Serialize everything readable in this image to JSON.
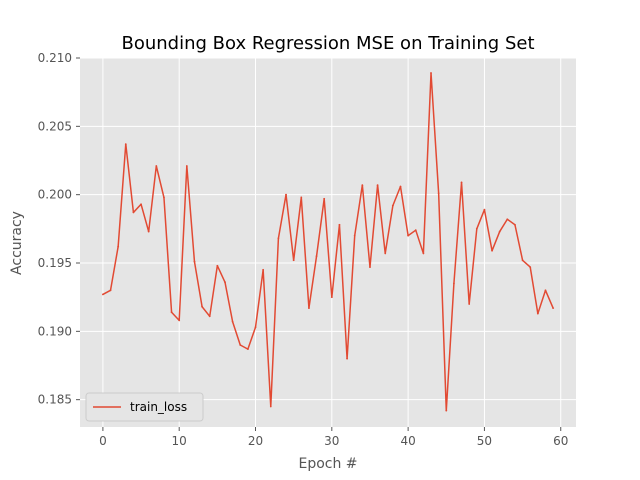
{
  "chart_data": {
    "type": "line",
    "title": "Bounding Box Regression MSE on Training Set",
    "xlabel": "Epoch #",
    "ylabel": "Accuracy",
    "xlim": [
      -3,
      62
    ],
    "ylim": [
      0.183,
      0.21
    ],
    "xticks": [
      0,
      10,
      20,
      30,
      40,
      50,
      60
    ],
    "xtick_labels": [
      "0",
      "10",
      "20",
      "30",
      "40",
      "50",
      "60"
    ],
    "yticks": [
      0.185,
      0.19,
      0.195,
      0.2,
      0.205,
      0.21
    ],
    "ytick_labels": [
      "0.185",
      "0.190",
      "0.195",
      "0.200",
      "0.205",
      "0.210"
    ],
    "grid": true,
    "legend_position": "lower-left",
    "series": [
      {
        "name": "train_loss",
        "color": "#e24a33",
        "x": [
          0,
          1,
          2,
          3,
          4,
          5,
          6,
          7,
          8,
          9,
          10,
          11,
          12,
          13,
          14,
          15,
          16,
          17,
          18,
          19,
          20,
          21,
          22,
          23,
          24,
          25,
          26,
          27,
          28,
          29,
          30,
          31,
          32,
          33,
          34,
          35,
          36,
          37,
          38,
          39,
          40,
          41,
          42,
          43,
          44,
          45,
          46,
          47,
          48,
          49,
          50,
          51,
          52,
          53,
          54,
          55,
          56,
          57,
          58,
          59
        ],
        "values": [
          0.1927,
          0.193,
          0.1962,
          0.2037,
          0.1987,
          0.1993,
          0.1973,
          0.2021,
          0.1998,
          0.1914,
          0.1908,
          0.2021,
          0.1951,
          0.1918,
          0.1911,
          0.1948,
          0.1936,
          0.1907,
          0.189,
          0.1887,
          0.1903,
          0.1945,
          0.1845,
          0.1968,
          0.2,
          0.1952,
          0.1998,
          0.1917,
          0.1955,
          0.1997,
          0.1925,
          0.1978,
          0.188,
          0.197,
          0.2007,
          0.1947,
          0.2007,
          0.1957,
          0.1992,
          0.2006,
          0.197,
          0.1974,
          0.1957,
          0.2089,
          0.2001,
          0.1842,
          0.1935,
          0.2009,
          0.192,
          0.1975,
          0.1989,
          0.1959,
          0.1973,
          0.1982,
          0.1978,
          0.1952,
          0.1947,
          0.1913,
          0.193,
          0.1917
        ]
      }
    ]
  }
}
